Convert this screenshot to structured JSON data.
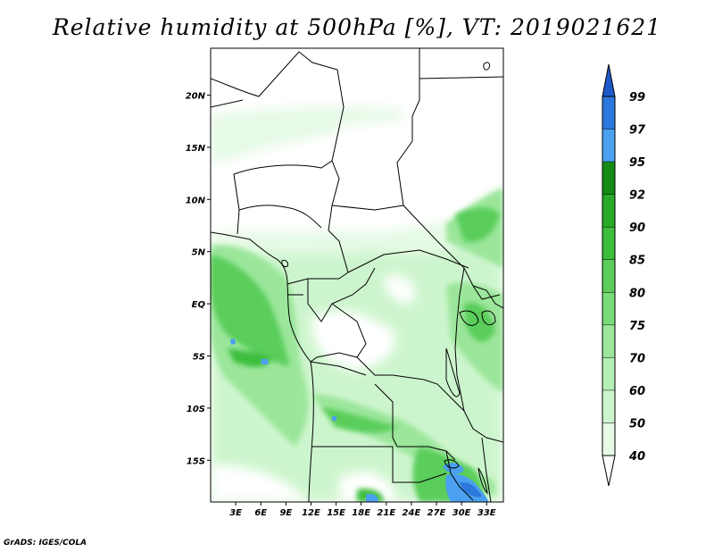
{
  "title": "Relative humidity at 500hPa [%], VT: 2019021621",
  "credit": "GrADS: IGES/COLA",
  "map": {
    "lat_labels": [
      "20N",
      "15N",
      "10N",
      "5N",
      "EQ",
      "5S",
      "10S",
      "15S"
    ],
    "lon_labels": [
      "3E",
      "6E",
      "9E",
      "12E",
      "15E",
      "18E",
      "21E",
      "24E",
      "27E",
      "30E",
      "33E"
    ],
    "lat_values": [
      20,
      15,
      10,
      5,
      0,
      -5,
      -10,
      -15
    ],
    "lon_values": [
      3,
      6,
      9,
      12,
      15,
      18,
      21,
      24,
      27,
      30,
      33
    ],
    "extent": {
      "lon_min": 0,
      "lon_max": 35,
      "lat_min": -19,
      "lat_max": 24.5
    }
  },
  "colorbar": {
    "levels": [
      "40",
      "50",
      "60",
      "70",
      "75",
      "80",
      "85",
      "90",
      "92",
      "95",
      "97",
      "99"
    ],
    "colors": [
      "#ffffff",
      "#e6fae6",
      "#cdf5cd",
      "#b4f0b4",
      "#9be69b",
      "#78dc78",
      "#5acd5a",
      "#3cbe3c",
      "#28aa28",
      "#148c14",
      "#4ba0f0",
      "#2d78dc",
      "#1e5ac8"
    ]
  }
}
